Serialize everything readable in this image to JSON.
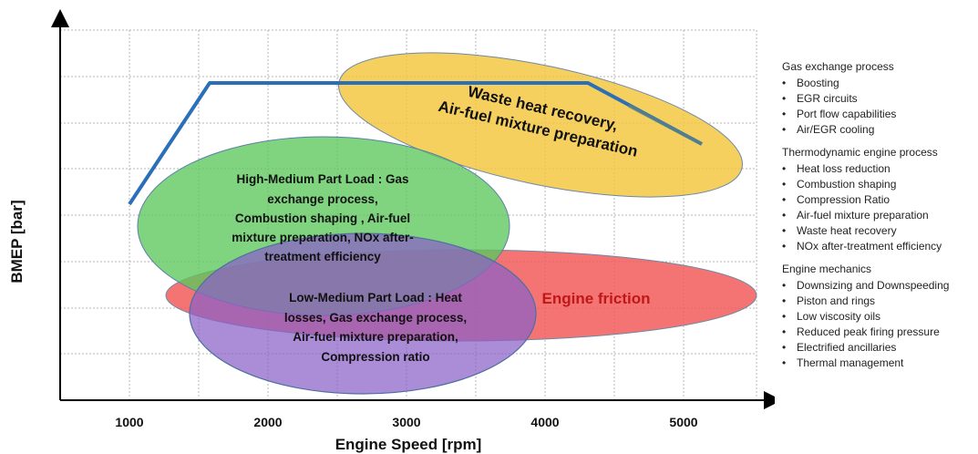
{
  "diagram": {
    "x_axis": {
      "title": "Engine Speed [rpm]",
      "ticks": [
        "1000",
        "2000",
        "3000",
        "4000",
        "5000"
      ]
    },
    "y_axis": {
      "title": "BMEP [bar]"
    },
    "regions": {
      "waste_heat": {
        "lines": [
          "Waste heat recovery,",
          "Air-fuel mixture preparation"
        ],
        "color": "#f5c842"
      },
      "high_medium": {
        "lines": [
          "High-Medium Part Load : Gas",
          "exchange process,",
          "Combustion shaping , Air-fuel",
          "mixture preparation, NOx after-",
          "treatment efficiency"
        ],
        "color": "#5cc85c"
      },
      "engine_friction": {
        "lines": [
          "Engine friction"
        ],
        "color": "#f25c5c",
        "text_color": "#c01818"
      },
      "low_medium": {
        "lines": [
          "Low-Medium Part Load : Heat",
          "losses, Gas exchange process,",
          "Air-fuel mixture preparation,",
          "Compression ratio"
        ],
        "color": "#8b60c8"
      }
    },
    "full_load_curve_color": "#2a6fb8"
  },
  "side_panel": {
    "groups": [
      {
        "title": "Gas exchange process",
        "items": [
          "Boosting",
          "EGR circuits",
          "Port flow capabilities",
          "Air/EGR cooling"
        ]
      },
      {
        "title": "Thermodynamic engine process",
        "items": [
          "Heat loss reduction",
          "Combustion shaping",
          "Compression Ratio",
          "Air-fuel mixture preparation",
          "Waste heat recovery",
          "NOx after-treatment efficiency"
        ]
      },
      {
        "title": "Engine mechanics",
        "items": [
          "Downsizing and Downspeeding",
          "Piston and rings",
          "Low viscosity oils",
          "Reduced peak firing pressure",
          "Electrified ancillaries",
          "Thermal management"
        ]
      }
    ]
  }
}
